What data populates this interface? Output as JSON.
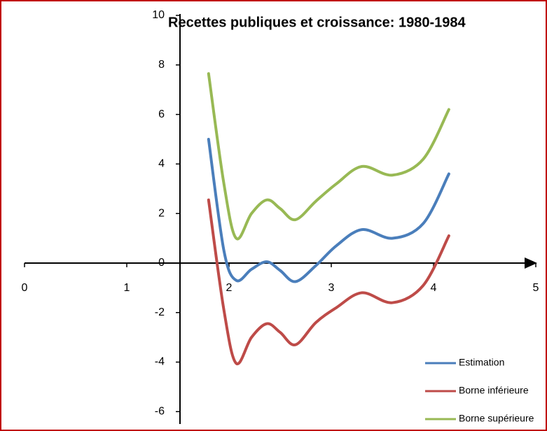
{
  "chart_data": {
    "type": "line",
    "title": "Recettes publiques et croissance: 1980-1984",
    "x": [
      1.8,
      1.95,
      2.07,
      2.22,
      2.37,
      2.5,
      2.65,
      2.85,
      3.05,
      3.3,
      3.6,
      3.9,
      4.15
    ],
    "series": [
      {
        "name": "Estimation",
        "color": "#4a7ebb",
        "values": [
          5.0,
          0.5,
          -0.7,
          -0.25,
          0.05,
          -0.3,
          -0.75,
          -0.1,
          0.7,
          1.35,
          1.0,
          1.6,
          3.6
        ]
      },
      {
        "name": "Borne inférieure",
        "color": "#be4b48",
        "values": [
          2.55,
          -1.9,
          -4.05,
          -3.0,
          -2.45,
          -2.8,
          -3.3,
          -2.4,
          -1.8,
          -1.2,
          -1.6,
          -0.9,
          1.1
        ]
      },
      {
        "name": "Borne supérieure",
        "color": "#98b954",
        "values": [
          7.65,
          3.2,
          1.0,
          2.0,
          2.55,
          2.2,
          1.75,
          2.5,
          3.2,
          3.9,
          3.55,
          4.2,
          6.2
        ]
      }
    ],
    "xlim": [
      0,
      5
    ],
    "xticks": [
      0,
      1,
      2,
      3,
      4,
      5
    ],
    "ylim": [
      -6.5,
      10
    ],
    "yticks": [
      -6,
      -4,
      -2,
      0,
      2,
      4,
      6,
      8,
      10
    ],
    "legend": "lower right"
  }
}
